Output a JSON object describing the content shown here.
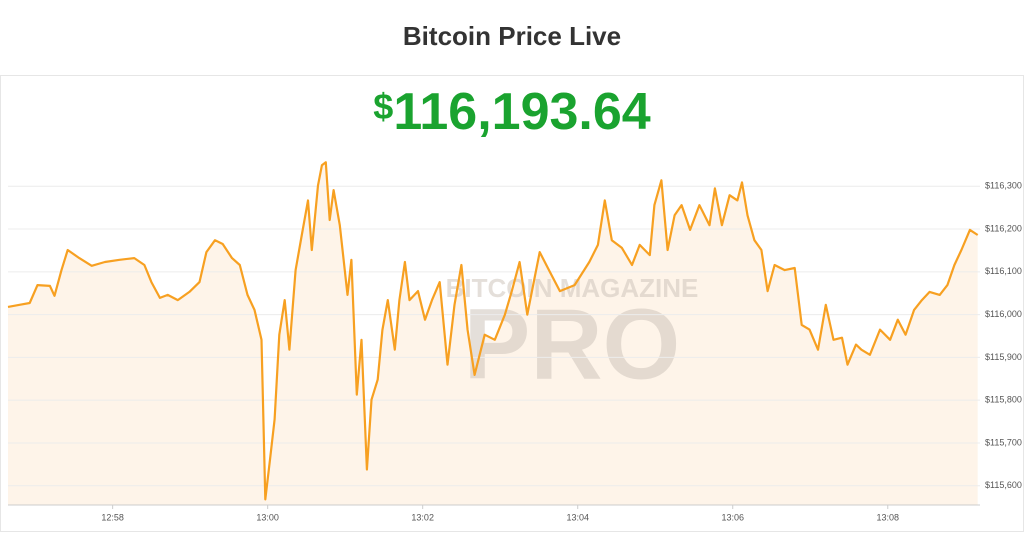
{
  "chart_data": {
    "type": "line",
    "title": "Bitcoin Price Live",
    "price_currency": "$",
    "price_text": "116,193.64",
    "watermark_top": "BITCOIN MAGAZINE",
    "watermark_main": "PRO",
    "color": "#f7a021",
    "fill_color": "#fdf0e2",
    "grid": true,
    "xlim": [
      776.65,
      789.19
    ],
    "ylim": [
      115555,
      116560
    ],
    "xticks": [
      {
        "value": 778,
        "label": "12:58"
      },
      {
        "value": 780,
        "label": "13:00"
      },
      {
        "value": 782,
        "label": "13:02"
      },
      {
        "value": 784,
        "label": "13:04"
      },
      {
        "value": 786,
        "label": "13:06"
      },
      {
        "value": 788,
        "label": "13:08"
      }
    ],
    "yticks": [
      {
        "value": 115600,
        "label": "$115,600"
      },
      {
        "value": 115700,
        "label": "$115,700"
      },
      {
        "value": 115800,
        "label": "$115,800"
      },
      {
        "value": 115900,
        "label": "$115,900"
      },
      {
        "value": 116000,
        "label": "$116,000"
      },
      {
        "value": 116100,
        "label": "$116,100"
      },
      {
        "value": 116200,
        "label": "$116,200"
      },
      {
        "value": 116300,
        "label": "$116,300"
      }
    ],
    "x": [
      776.65,
      776.8,
      776.93,
      777.03,
      777.19,
      777.25,
      777.34,
      777.42,
      777.57,
      777.73,
      777.9,
      778.09,
      778.28,
      778.41,
      778.5,
      778.61,
      778.71,
      778.84,
      778.99,
      779.12,
      779.21,
      779.32,
      779.42,
      779.54,
      779.64,
      779.74,
      779.83,
      779.92,
      779.97,
      780.03,
      780.09,
      780.15,
      780.22,
      780.28,
      780.36,
      780.44,
      780.52,
      780.57,
      780.65,
      780.7,
      780.75,
      780.8,
      780.85,
      780.93,
      781.03,
      781.08,
      781.15,
      781.21,
      781.28,
      781.34,
      781.42,
      781.48,
      781.55,
      781.64,
      781.7,
      781.77,
      781.83,
      781.94,
      782.03,
      782.12,
      782.22,
      782.32,
      782.41,
      782.5,
      782.58,
      782.67,
      782.8,
      782.93,
      783.06,
      783.15,
      783.25,
      783.35,
      783.51,
      783.64,
      783.77,
      783.96,
      784.15,
      784.26,
      784.35,
      784.44,
      784.57,
      784.7,
      784.8,
      784.93,
      784.99,
      785.08,
      785.16,
      785.25,
      785.34,
      785.45,
      785.57,
      785.7,
      785.77,
      785.86,
      785.96,
      786.06,
      786.12,
      786.19,
      786.28,
      786.37,
      786.45,
      786.54,
      786.67,
      786.8,
      786.89,
      786.99,
      787.1,
      787.2,
      787.3,
      787.41,
      787.48,
      787.59,
      787.66,
      787.77,
      787.9,
      788.03,
      788.13,
      788.23,
      788.34,
      788.44,
      788.54,
      788.67,
      788.77,
      788.86,
      788.95,
      789.06,
      789.16
    ],
    "values": [
      116018,
      116023,
      116027,
      116069,
      116067,
      116044,
      116104,
      116151,
      116132,
      116114,
      116123,
      116128,
      116132,
      116116,
      116076,
      116039,
      116046,
      116034,
      116053,
      116076,
      116146,
      116174,
      116165,
      116132,
      116116,
      116046,
      116011,
      115941,
      115568,
      115661,
      115755,
      115953,
      116034,
      115918,
      116104,
      116186,
      116267,
      116151,
      116302,
      116349,
      116356,
      116221,
      116291,
      116209,
      116046,
      116128,
      115813,
      115941,
      115638,
      115801,
      115848,
      115964,
      116034,
      115918,
      116034,
      116123,
      116034,
      116055,
      115988,
      116034,
      116076,
      115883,
      116023,
      116116,
      115964,
      115859,
      115953,
      115941,
      116000,
      116055,
      116123,
      116000,
      116146,
      116100,
      116055,
      116069,
      116123,
      116163,
      116267,
      116174,
      116156,
      116116,
      116163,
      116139,
      116256,
      116314,
      116151,
      116232,
      116256,
      116198,
      116256,
      116209,
      116295,
      116209,
      116279,
      116267,
      116309,
      116232,
      116174,
      116151,
      116055,
      116116,
      116104,
      116109,
      115976,
      115965,
      115918,
      116023,
      115941,
      115946,
      115883,
      115930,
      115918,
      115906,
      115965,
      115941,
      115988,
      115953,
      116011,
      116034,
      116053,
      116046,
      116069,
      116116,
      116151,
      116198,
      116186
    ]
  }
}
